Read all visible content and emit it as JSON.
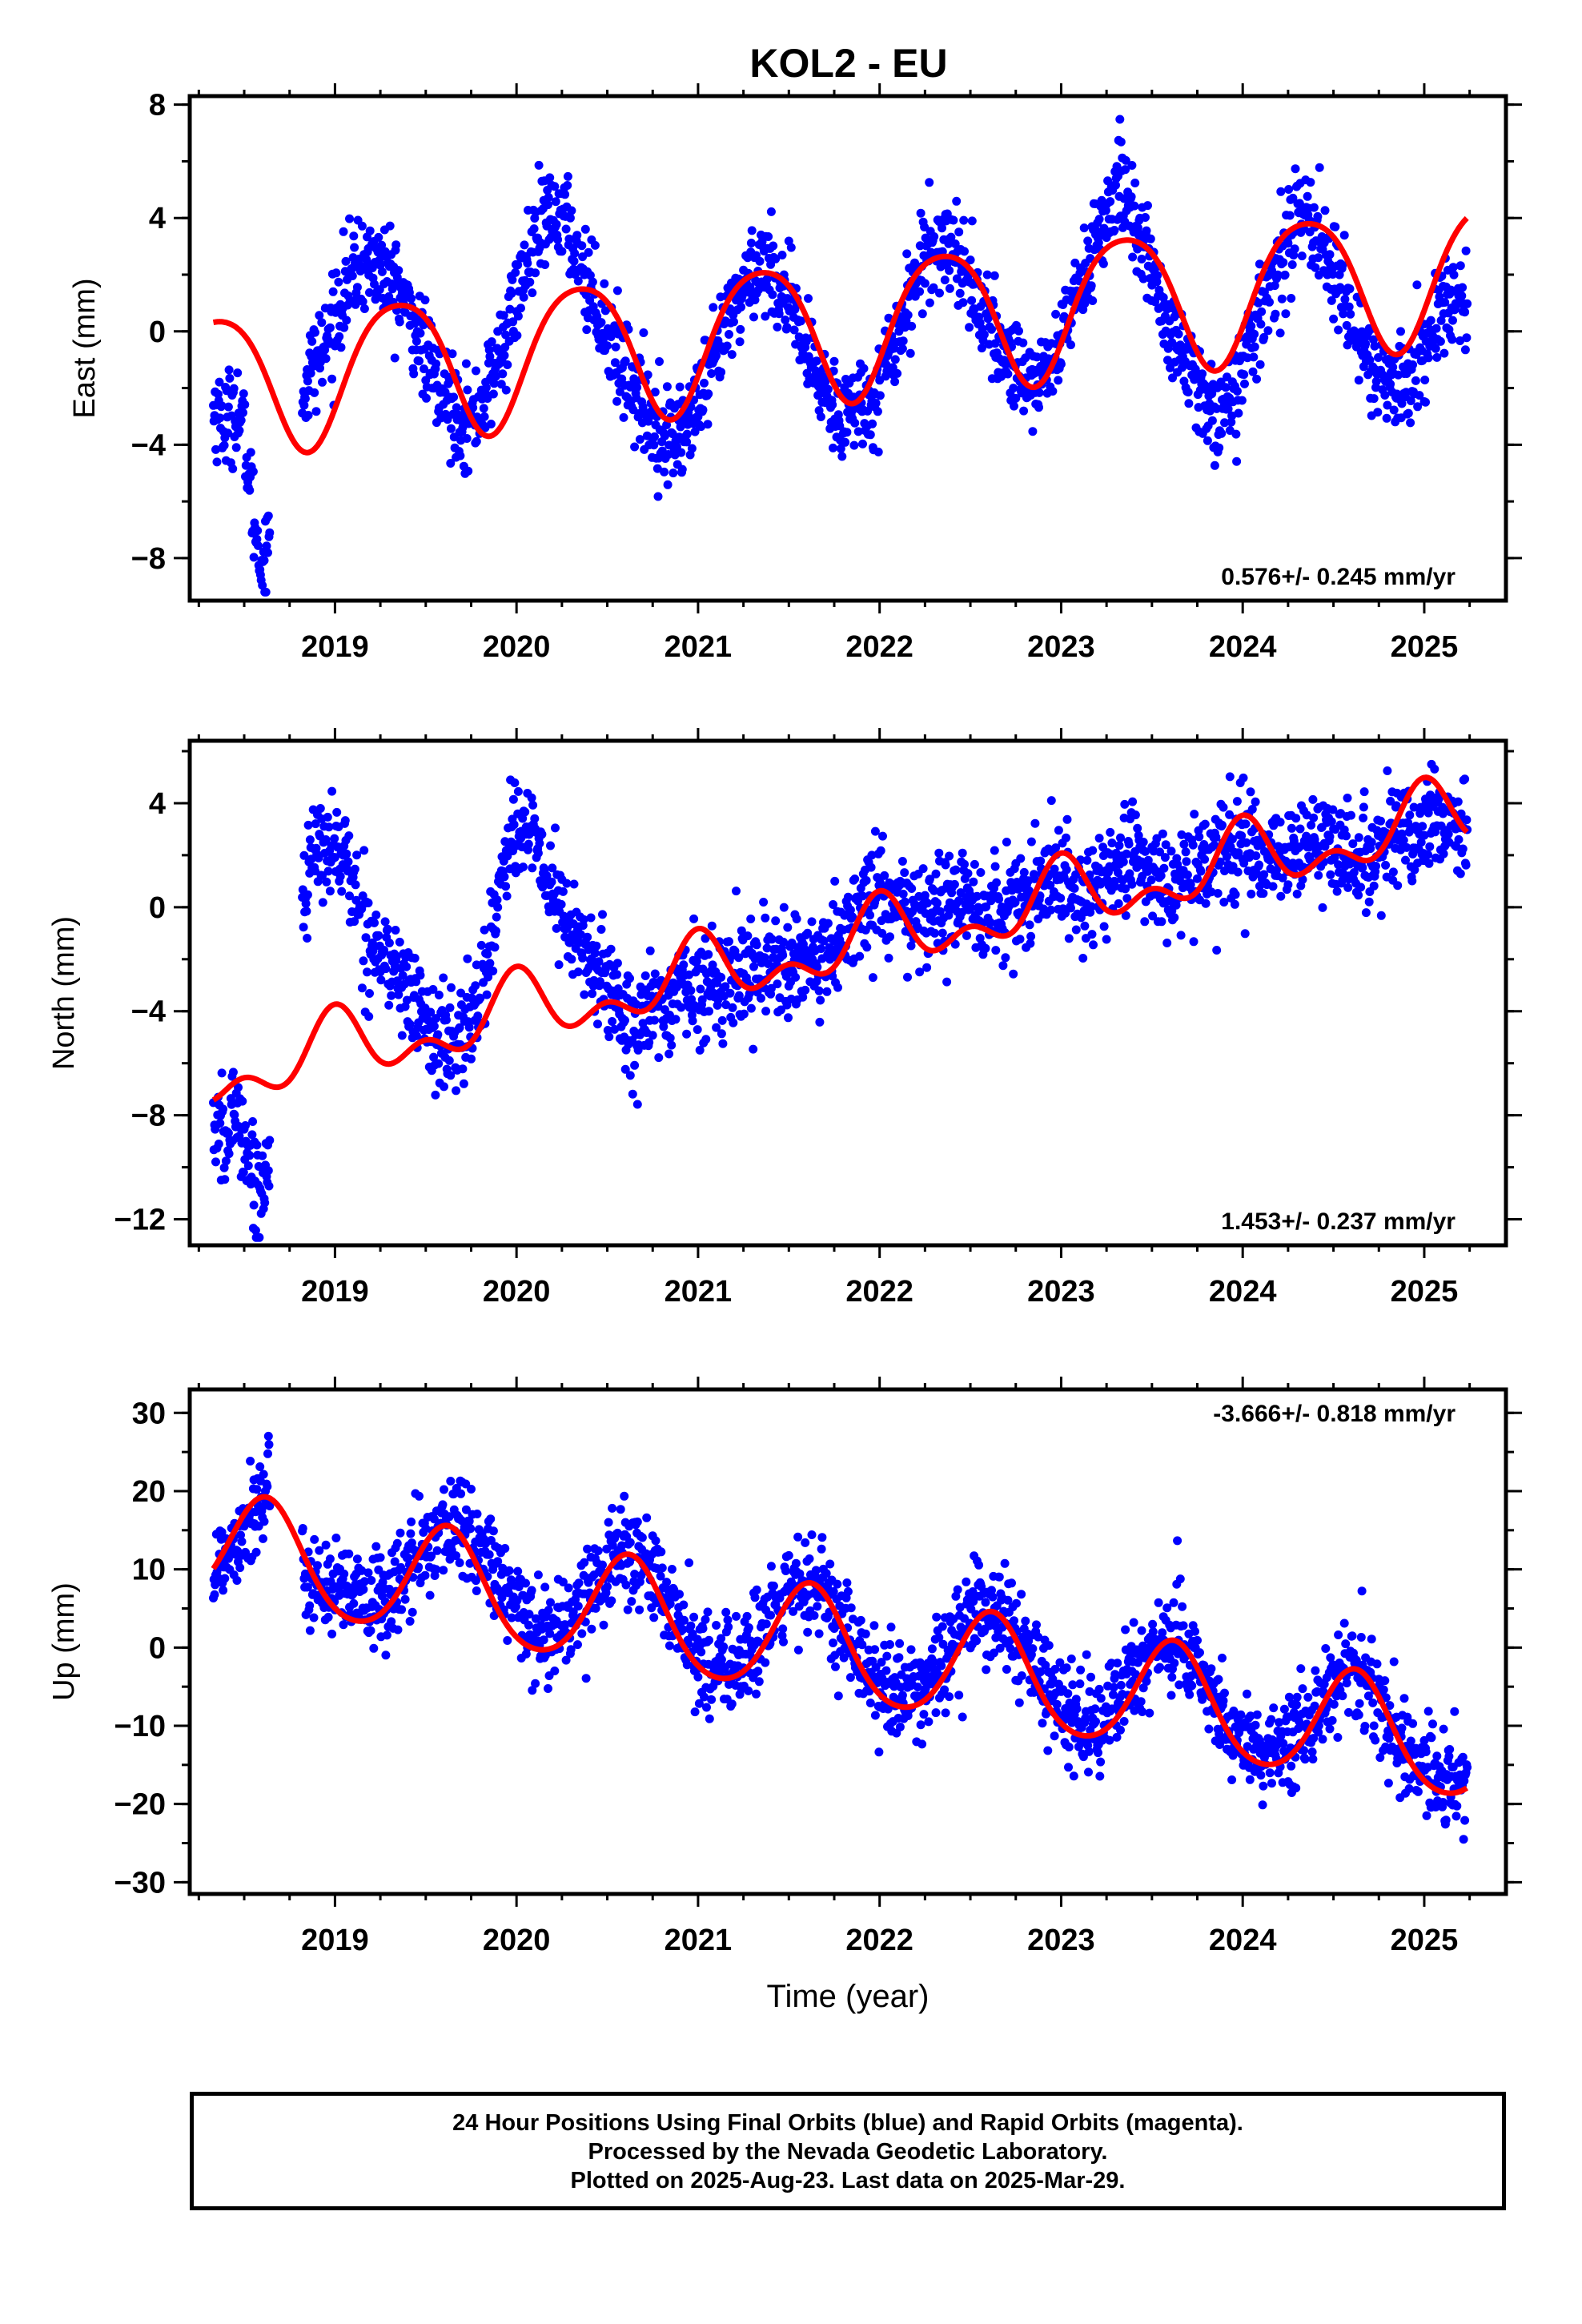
{
  "title": "KOL2 - EU",
  "colors": {
    "final_orbits": "#0000ff",
    "model_fit": "#ff0000",
    "axes": "#000000"
  },
  "caption": {
    "line1": "24 Hour Positions Using Final Orbits (blue) and Rapid Orbits (magenta).",
    "line2": "Processed by the Nevada Geodetic Laboratory.",
    "line3": "Plotted on 2025-Aug-23. Last data on 2025-Mar-29."
  },
  "chart_data": [
    {
      "type": "scatter",
      "title": "KOL2 - EU",
      "ylabel": "East (mm)",
      "xlabel": "",
      "xlim": [
        2018.2,
        2025.45
      ],
      "ylim": [
        -9.5,
        8.3
      ],
      "xticks": [
        "2019",
        "2020",
        "2021",
        "2022",
        "2023",
        "2024",
        "2025"
      ],
      "yticks": [
        "8",
        "4",
        "0",
        "-4",
        "-8"
      ],
      "rate_label": "0.576+/- 0.245 mm/yr",
      "rate_position": "bottom-right",
      "grid": false,
      "data_range": {
        "start": 2018.33,
        "end": 2025.24
      },
      "series": [
        {
          "kind": "scatter",
          "color": "#0000ff",
          "description_values": [
            [
              2018.35,
              -2.8
            ],
            [
              2018.4,
              -3.3
            ],
            [
              2018.45,
              -2.5
            ],
            [
              2018.5,
              -3.6
            ],
            [
              2018.55,
              -6.5
            ],
            [
              2018.6,
              -8.4
            ],
            [
              2018.85,
              -1.5
            ],
            [
              2018.95,
              -0.5
            ],
            [
              2019.05,
              1.5
            ],
            [
              2019.15,
              2.4
            ],
            [
              2019.25,
              2.3
            ],
            [
              2019.35,
              1.5
            ],
            [
              2019.45,
              0.0
            ],
            [
              2019.55,
              -1.7
            ],
            [
              2019.65,
              -2.6
            ],
            [
              2019.75,
              -3.3
            ],
            [
              2019.85,
              -1.9
            ],
            [
              2019.95,
              0.0
            ],
            [
              2020.05,
              2.3
            ],
            [
              2020.15,
              3.7
            ],
            [
              2020.25,
              4.2
            ],
            [
              2020.35,
              2.5
            ],
            [
              2020.45,
              0.8
            ],
            [
              2020.55,
              -0.8
            ],
            [
              2020.65,
              -2.0
            ],
            [
              2020.75,
              -3.2
            ],
            [
              2020.85,
              -3.8
            ],
            [
              2020.95,
              -3.3
            ],
            [
              2021.05,
              -2.0
            ],
            [
              2021.15,
              0.0
            ],
            [
              2021.25,
              1.6
            ],
            [
              2021.35,
              2.6
            ],
            [
              2021.45,
              1.8
            ],
            [
              2021.55,
              0.0
            ],
            [
              2021.65,
              -1.7
            ],
            [
              2021.75,
              -2.5
            ],
            [
              2021.85,
              -2.8
            ],
            [
              2021.95,
              -2.4
            ],
            [
              2022.05,
              -1.0
            ],
            [
              2022.15,
              1.0
            ],
            [
              2022.25,
              2.6
            ],
            [
              2022.35,
              3.3
            ],
            [
              2022.45,
              2.6
            ],
            [
              2022.55,
              0.8
            ],
            [
              2022.65,
              -0.5
            ],
            [
              2022.75,
              -1.2
            ],
            [
              2022.85,
              -1.8
            ],
            [
              2022.95,
              -1.1
            ],
            [
              2023.05,
              0.6
            ],
            [
              2023.15,
              2.5
            ],
            [
              2023.25,
              4.2
            ],
            [
              2023.35,
              5.0
            ],
            [
              2023.45,
              3.2
            ],
            [
              2023.55,
              0.9
            ],
            [
              2023.65,
              -0.8
            ],
            [
              2023.75,
              -2.0
            ],
            [
              2023.85,
              -3.0
            ],
            [
              2023.95,
              -2.2
            ],
            [
              2024.05,
              -0.4
            ],
            [
              2024.15,
              1.6
            ],
            [
              2024.25,
              3.4
            ],
            [
              2024.35,
              4.1
            ],
            [
              2024.45,
              3.0
            ],
            [
              2024.55,
              1.3
            ],
            [
              2024.65,
              -0.3
            ],
            [
              2024.75,
              -1.6
            ],
            [
              2024.85,
              -2.2
            ],
            [
              2024.95,
              -1.4
            ],
            [
              2025.05,
              0.2
            ],
            [
              2025.15,
              1.2
            ],
            [
              2025.22,
              0.8
            ]
          ]
        },
        {
          "kind": "model",
          "color": "#ff0000",
          "model": {
            "t0": 2021.5,
            "intercept": 0.05,
            "rate": 0.576,
            "annual_amplitude": 2.45,
            "annual_phase_peak": 0.35,
            "semiannual_amplitude": 0.35,
            "semiannual_phase_peak": 0.1
          }
        }
      ]
    },
    {
      "type": "scatter",
      "ylabel": "North (mm)",
      "xlabel": "",
      "xlim": [
        2018.2,
        2025.45
      ],
      "ylim": [
        -13.0,
        6.4
      ],
      "xticks": [
        "2019",
        "2020",
        "2021",
        "2022",
        "2023",
        "2024",
        "2025"
      ],
      "yticks": [
        "4",
        "0",
        "-4",
        "-8",
        "-12"
      ],
      "rate_label": "1.453+/- 0.237 mm/yr",
      "rate_position": "bottom-right",
      "grid": false,
      "data_range": {
        "start": 2018.33,
        "end": 2025.24
      },
      "series": [
        {
          "kind": "scatter",
          "color": "#0000ff",
          "description_values": [
            [
              2018.35,
              -8.5
            ],
            [
              2018.4,
              -9.3
            ],
            [
              2018.45,
              -7.5
            ],
            [
              2018.5,
              -8.8
            ],
            [
              2018.55,
              -10.5
            ],
            [
              2018.6,
              -11.0
            ],
            [
              2018.85,
              1.5
            ],
            [
              2018.95,
              2.5
            ],
            [
              2019.05,
              2.0
            ],
            [
              2019.15,
              -0.5
            ],
            [
              2019.25,
              -1.8
            ],
            [
              2019.35,
              -2.6
            ],
            [
              2019.45,
              -3.8
            ],
            [
              2019.55,
              -5.0
            ],
            [
              2019.65,
              -5.4
            ],
            [
              2019.75,
              -4.5
            ],
            [
              2019.85,
              -1.8
            ],
            [
              2019.95,
              2.8
            ],
            [
              2020.05,
              3.0
            ],
            [
              2020.15,
              1.5
            ],
            [
              2020.25,
              -0.3
            ],
            [
              2020.35,
              -1.5
            ],
            [
              2020.45,
              -2.5
            ],
            [
              2020.55,
              -3.6
            ],
            [
              2020.65,
              -4.6
            ],
            [
              2020.75,
              -4.1
            ],
            [
              2020.85,
              -3.5
            ],
            [
              2020.95,
              -2.9
            ],
            [
              2021.05,
              -3.2
            ],
            [
              2021.15,
              -2.7
            ],
            [
              2021.25,
              -2.4
            ],
            [
              2021.35,
              -2.2
            ],
            [
              2021.45,
              -2.0
            ],
            [
              2021.55,
              -2.3
            ],
            [
              2021.65,
              -2.6
            ],
            [
              2021.75,
              -1.6
            ],
            [
              2021.85,
              -0.6
            ],
            [
              2021.95,
              0.5
            ],
            [
              2022.05,
              0.2
            ],
            [
              2022.15,
              -0.3
            ],
            [
              2022.25,
              -0.4
            ],
            [
              2022.35,
              0.0
            ],
            [
              2022.45,
              0.3
            ],
            [
              2022.55,
              -0.2
            ],
            [
              2022.65,
              -0.6
            ],
            [
              2022.75,
              0.3
            ],
            [
              2022.85,
              0.8
            ],
            [
              2022.95,
              1.2
            ],
            [
              2023.05,
              0.8
            ],
            [
              2023.15,
              0.4
            ],
            [
              2023.25,
              0.9
            ],
            [
              2023.35,
              1.7
            ],
            [
              2023.45,
              1.8
            ],
            [
              2023.55,
              1.0
            ],
            [
              2023.65,
              0.8
            ],
            [
              2023.75,
              1.5
            ],
            [
              2023.85,
              2.0
            ],
            [
              2023.95,
              2.2
            ],
            [
              2024.05,
              2.3
            ],
            [
              2024.15,
              2.1
            ],
            [
              2024.25,
              2.0
            ],
            [
              2024.35,
              2.2
            ],
            [
              2024.45,
              2.4
            ],
            [
              2024.55,
              2.0
            ],
            [
              2024.65,
              1.8
            ],
            [
              2024.75,
              2.3
            ],
            [
              2024.85,
              2.8
            ],
            [
              2024.95,
              3.0
            ],
            [
              2025.05,
              3.2
            ],
            [
              2025.15,
              3.1
            ],
            [
              2025.22,
              2.9
            ]
          ]
        },
        {
          "kind": "model",
          "color": "#ff0000",
          "model": {
            "t0": 2021.5,
            "intercept": -1.9,
            "rate": 1.453,
            "annual_amplitude": 1.05,
            "annual_phase_peak": 0.0,
            "semiannual_amplitude": 0.75,
            "semiannual_phase_peak": 0.0
          }
        }
      ]
    },
    {
      "type": "scatter",
      "ylabel": "Up (mm)",
      "xlabel": "Time (year)",
      "xlim": [
        2018.2,
        2025.45
      ],
      "ylim": [
        -31.5,
        33.0
      ],
      "xticks": [
        "2019",
        "2020",
        "2021",
        "2022",
        "2023",
        "2024",
        "2025"
      ],
      "yticks": [
        "30",
        "20",
        "10",
        "0",
        "-10",
        "-20",
        "-30"
      ],
      "rate_label": "-3.666+/- 0.818 mm/yr",
      "rate_position": "top-right",
      "grid": false,
      "data_range": {
        "start": 2018.33,
        "end": 2025.24
      },
      "series": [
        {
          "kind": "scatter",
          "color": "#0000ff",
          "description_values": [
            [
              2018.35,
              10.0
            ],
            [
              2018.45,
              14.0
            ],
            [
              2018.55,
              18.0
            ],
            [
              2018.65,
              19.0
            ],
            [
              2018.75,
              14.0
            ],
            [
              2018.85,
              9.5
            ],
            [
              2018.95,
              7.5
            ],
            [
              2019.05,
              6.5
            ],
            [
              2019.15,
              5.5
            ],
            [
              2019.25,
              6.0
            ],
            [
              2019.35,
              8.0
            ],
            [
              2019.45,
              11.5
            ],
            [
              2019.55,
              14.5
            ],
            [
              2019.65,
              16.0
            ],
            [
              2019.75,
              14.0
            ],
            [
              2019.85,
              10.5
            ],
            [
              2019.95,
              6.5
            ],
            [
              2020.05,
              3.5
            ],
            [
              2020.15,
              2.0
            ],
            [
              2020.25,
              2.5
            ],
            [
              2020.35,
              5.5
            ],
            [
              2020.45,
              9.0
            ],
            [
              2020.55,
              12.0
            ],
            [
              2020.65,
              12.5
            ],
            [
              2020.75,
              9.0
            ],
            [
              2020.85,
              4.5
            ],
            [
              2020.95,
              0.5
            ],
            [
              2021.05,
              -2.0
            ],
            [
              2021.15,
              -2.5
            ],
            [
              2021.25,
              -1.5
            ],
            [
              2021.35,
              2.0
            ],
            [
              2021.45,
              5.5
            ],
            [
              2021.55,
              8.0
            ],
            [
              2021.65,
              8.0
            ],
            [
              2021.75,
              4.0
            ],
            [
              2021.85,
              -0.5
            ],
            [
              2021.95,
              -4.0
            ],
            [
              2022.05,
              -5.5
            ],
            [
              2022.15,
              -6.0
            ],
            [
              2022.25,
              -5.0
            ],
            [
              2022.35,
              -1.5
            ],
            [
              2022.45,
              2.0
            ],
            [
              2022.55,
              4.5
            ],
            [
              2022.65,
              5.0
            ],
            [
              2022.75,
              1.5
            ],
            [
              2022.85,
              -3.0
            ],
            [
              2022.95,
              -7.0
            ],
            [
              2023.05,
              -9.0
            ],
            [
              2023.15,
              -10.0
            ],
            [
              2023.25,
              -8.5
            ],
            [
              2023.35,
              -5.0
            ],
            [
              2023.45,
              -1.5
            ],
            [
              2023.55,
              1.0
            ],
            [
              2023.65,
              0.5
            ],
            [
              2023.75,
              -2.5
            ],
            [
              2023.85,
              -7.0
            ],
            [
              2023.95,
              -11.0
            ],
            [
              2024.05,
              -13.0
            ],
            [
              2024.15,
              -13.5
            ],
            [
              2024.25,
              -12.5
            ],
            [
              2024.35,
              -9.5
            ],
            [
              2024.45,
              -5.5
            ],
            [
              2024.55,
              -3.0
            ],
            [
              2024.65,
              -3.0
            ],
            [
              2024.75,
              -6.5
            ],
            [
              2024.85,
              -11.5
            ],
            [
              2024.95,
              -15.0
            ],
            [
              2025.05,
              -16.5
            ],
            [
              2025.15,
              -17.5
            ],
            [
              2025.22,
              -17.0
            ]
          ]
        },
        {
          "kind": "model",
          "color": "#ff0000",
          "model": {
            "t0": 2021.5,
            "intercept": 0.9,
            "rate": -3.666,
            "annual_amplitude": 7.0,
            "annual_phase_peak": 0.62,
            "semiannual_amplitude": 0.8,
            "semiannual_phase_peak": 0.62
          }
        }
      ]
    }
  ]
}
